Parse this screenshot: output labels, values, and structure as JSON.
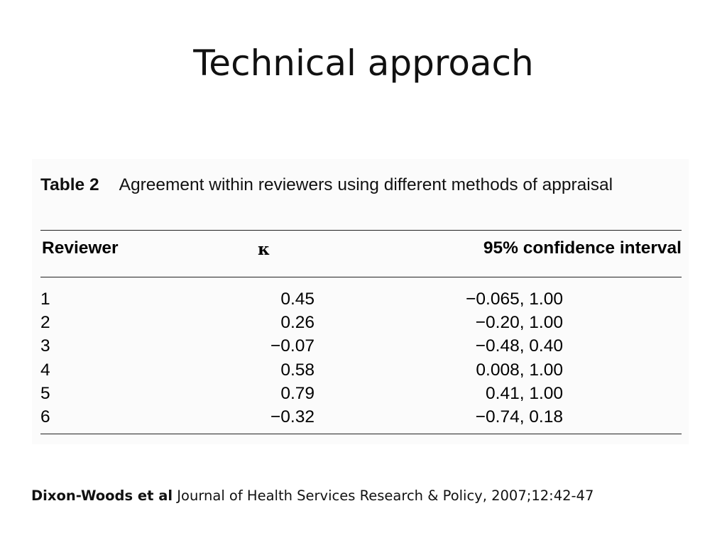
{
  "slide": {
    "title": "Technical approach"
  },
  "table": {
    "label": "Table 2",
    "caption": "Agreement within reviewers using different methods of appraisal",
    "headers": {
      "reviewer": "Reviewer",
      "kappa": "κ",
      "ci": "95% confidence interval"
    },
    "rows": [
      {
        "reviewer": "1",
        "kappa": "0.45",
        "ci": "−0.065, 1.00"
      },
      {
        "reviewer": "2",
        "kappa": "0.26",
        "ci": "−0.20, 1.00"
      },
      {
        "reviewer": "3",
        "kappa": "−0.07",
        "ci": "−0.48, 0.40"
      },
      {
        "reviewer": "4",
        "kappa": "0.58",
        "ci": "0.008, 1.00"
      },
      {
        "reviewer": "5",
        "kappa": "0.79",
        "ci": "0.41, 1.00"
      },
      {
        "reviewer": "6",
        "kappa": "−0.32",
        "ci": "−0.74, 0.18"
      }
    ]
  },
  "citation": {
    "author": "Dixon-Woods et al",
    "source": "Journal of Health Services Research & Policy, 2007;12:42-47"
  }
}
